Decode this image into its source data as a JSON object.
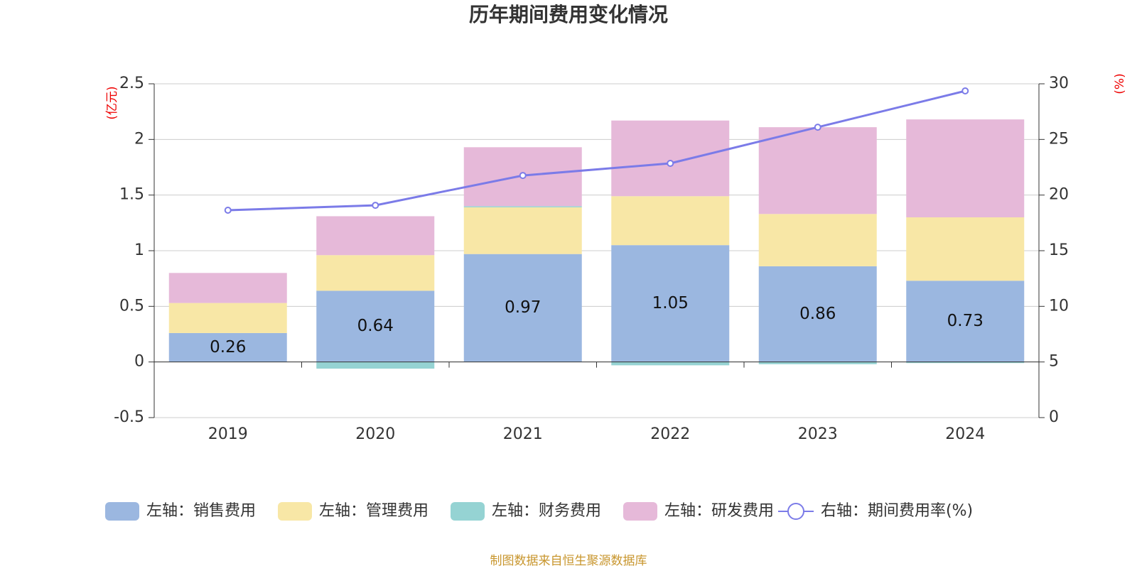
{
  "chart_data": {
    "type": "bar-line",
    "title": "历年期间费用变化情况",
    "y_label": "(亿元)",
    "y2_label": "(%)",
    "categories": [
      "2019",
      "2020",
      "2021",
      "2022",
      "2023",
      "2024"
    ],
    "ylim": [
      -0.5,
      2.5
    ],
    "yticks": [
      -0.5,
      0,
      0.5,
      1,
      1.5,
      2,
      2.5
    ],
    "y2lim": [
      0,
      30
    ],
    "y2ticks": [
      0,
      5,
      10,
      15,
      20,
      25,
      30
    ],
    "grid": true,
    "legend": "bottom",
    "series": [
      {
        "name": "左轴：销售费用",
        "type": "bar",
        "color": "#9bb7e0",
        "values": [
          0.26,
          0.64,
          0.97,
          1.05,
          0.86,
          0.73
        ],
        "show_labels": true
      },
      {
        "name": "左轴：管理费用",
        "type": "bar",
        "color": "#f8e7a6",
        "values": [
          0.27,
          0.32,
          0.42,
          0.44,
          0.47,
          0.57
        ]
      },
      {
        "name": "左轴：财务费用",
        "type": "bar",
        "color": "#95d3d3",
        "values": [
          0,
          -0.06,
          0.01,
          -0.03,
          -0.02,
          -0.01
        ]
      },
      {
        "name": "左轴：研发费用",
        "type": "bar",
        "color": "#e6b9d9",
        "values": [
          0.27,
          0.35,
          0.53,
          0.68,
          0.78,
          0.88
        ]
      },
      {
        "name": "右轴：期间费用率(%)",
        "type": "line",
        "axis": "y2",
        "color": "#7b7be8",
        "values": [
          18.64,
          19.08,
          21.76,
          22.85,
          26.1,
          29.36
        ]
      }
    ],
    "source": "制图数据来自恒生聚源数据库"
  }
}
